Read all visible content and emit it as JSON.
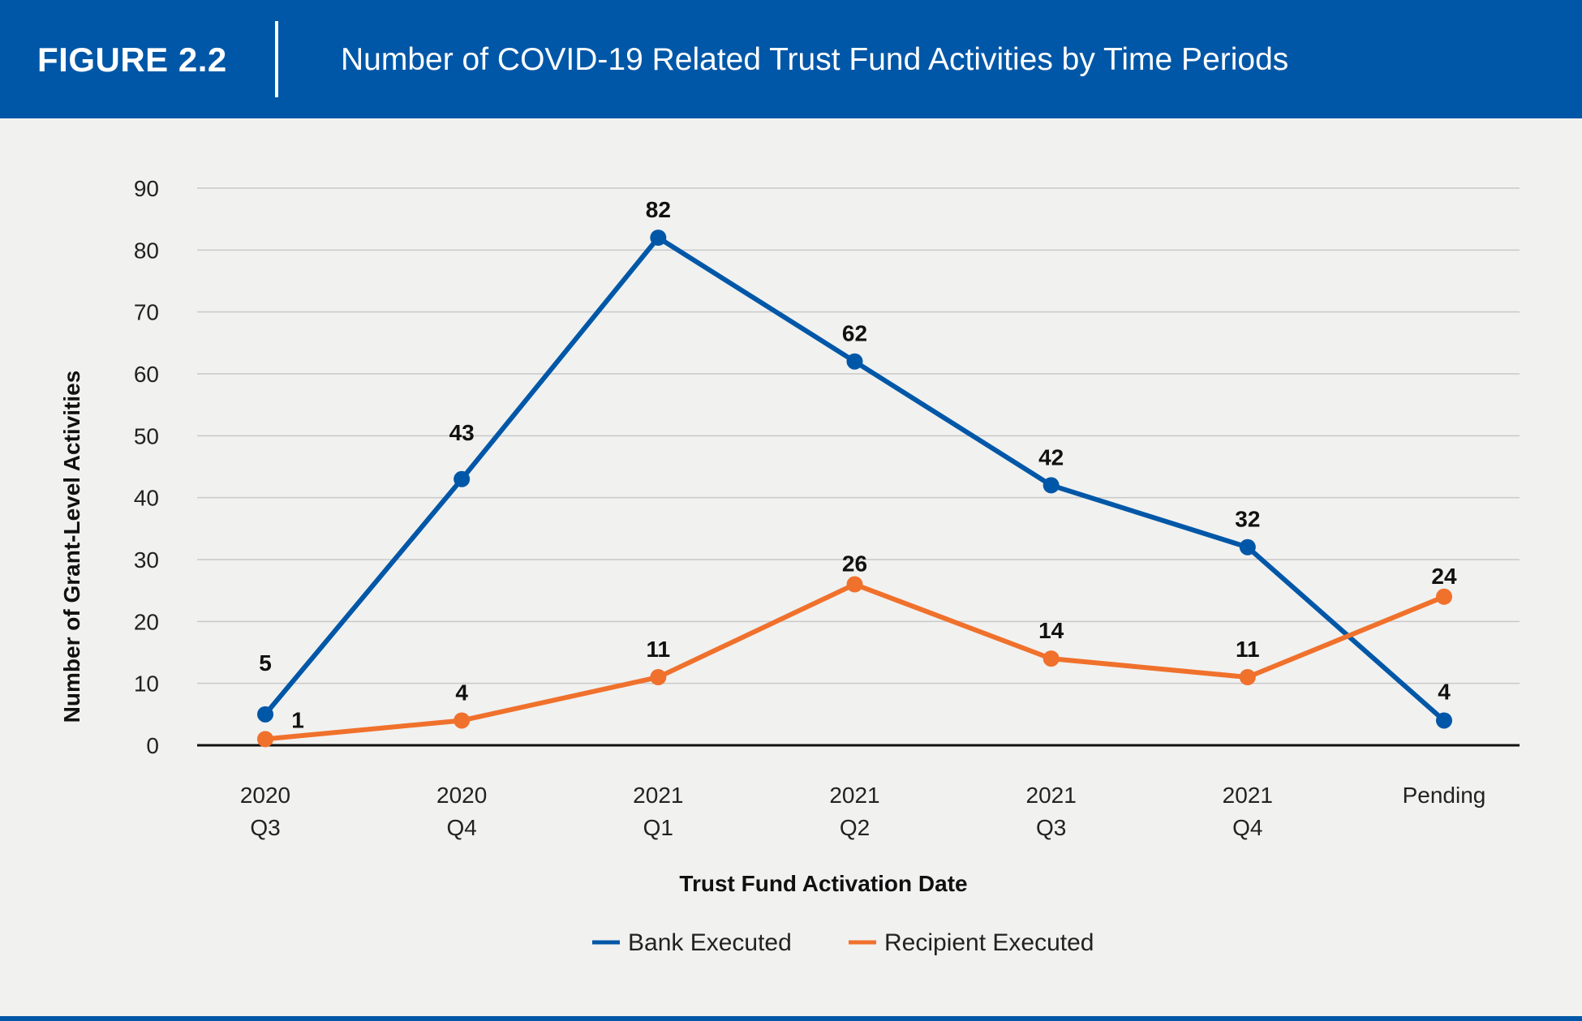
{
  "header": {
    "figure_label": "FIGURE 2.2",
    "title": "Number of COVID-19 Related Trust Fund Activities by Time Periods"
  },
  "colors": {
    "header_bg": "#0057a7",
    "bank": "#0057a7",
    "recipient": "#f0712c",
    "grid": "#c9c9c9",
    "axis": "#111111",
    "background": "#f1f1f0"
  },
  "chart_data": {
    "type": "line",
    "categories": [
      [
        "2020",
        "Q3"
      ],
      [
        "2020",
        "Q4"
      ],
      [
        "2021",
        "Q1"
      ],
      [
        "2021",
        "Q2"
      ],
      [
        "2021",
        "Q3"
      ],
      [
        "2021",
        "Q4"
      ],
      [
        "Pending"
      ]
    ],
    "series": [
      {
        "name": "Bank Executed",
        "color": "#0057a7",
        "values": [
          5,
          43,
          82,
          62,
          42,
          32,
          4
        ]
      },
      {
        "name": "Recipient Executed",
        "color": "#f0712c",
        "values": [
          1,
          4,
          11,
          26,
          14,
          11,
          24
        ]
      }
    ],
    "xlabel": "Trust Fund Activation Date",
    "ylabel": "Number of Grant-Level Activities",
    "ylim": [
      0,
      90
    ],
    "yticks": [
      0,
      10,
      20,
      30,
      40,
      50,
      60,
      70,
      80,
      90
    ],
    "grid": true,
    "legend_position": "bottom-center",
    "data_labels": true
  }
}
